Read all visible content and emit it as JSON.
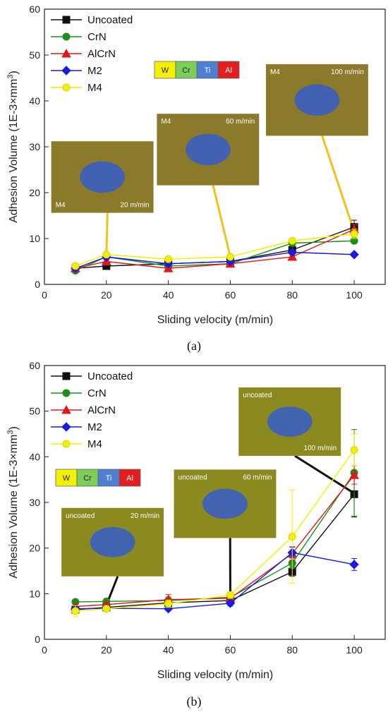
{
  "element_labels": [
    "W",
    "Cr",
    "Ti",
    "Al"
  ],
  "element_colors": [
    "#f5f000",
    "#7ccd5a",
    "#4f7fd0",
    "#e21e1e"
  ],
  "chart_data": [
    {
      "type": "line",
      "panel_label": "(a)",
      "xlabel": "Sliding velocity (m/min)",
      "ylabel": "Adhesion Volume (1E-3×mm",
      "ylabel_sup": "3",
      "ylabel_end": ")",
      "xlim": [
        0,
        110
      ],
      "ylim": [
        0,
        60
      ],
      "xticks": [
        0,
        20,
        40,
        60,
        80,
        100
      ],
      "yticks": [
        0,
        10,
        20,
        30,
        40,
        50,
        60
      ],
      "x": [
        10,
        20,
        40,
        60,
        80,
        100
      ],
      "series": [
        {
          "name": "Uncoated",
          "color": "#111111",
          "marker": "square",
          "values": [
            3.5,
            4.0,
            4.5,
            5.0,
            7.5,
            12.5
          ],
          "err": [
            0.3,
            0.3,
            0.3,
            0.3,
            0.5,
            1.5
          ]
        },
        {
          "name": "CrN",
          "color": "#1a8f1a",
          "marker": "circle",
          "values": [
            3.0,
            6.0,
            4.0,
            4.5,
            9.0,
            9.5
          ],
          "err": [
            0.3,
            0.4,
            0.3,
            0.3,
            0.5,
            0.5
          ]
        },
        {
          "name": "AlCrN",
          "color": "#e01818",
          "marker": "triangle",
          "values": [
            3.5,
            5.0,
            3.5,
            4.5,
            6.0,
            12.0
          ],
          "err": [
            0.3,
            0.3,
            0.3,
            0.3,
            0.4,
            1.0
          ]
        },
        {
          "name": "M2",
          "color": "#1a1ae0",
          "marker": "diamond",
          "values": [
            3.5,
            6.0,
            4.5,
            5.0,
            7.0,
            6.5
          ],
          "err": [
            0.3,
            0.4,
            0.3,
            0.3,
            0.4,
            0.4
          ]
        },
        {
          "name": "M4",
          "color": "#f0f000",
          "marker": "circle",
          "values": [
            4.0,
            6.5,
            5.5,
            6.0,
            9.5,
            11.0
          ],
          "err": [
            0.3,
            0.4,
            0.3,
            0.3,
            0.5,
            1.0
          ]
        }
      ],
      "insets": [
        {
          "label_left": "M4",
          "label_right": "20 m/min",
          "target": [
            20,
            6.5
          ]
        },
        {
          "label_left": "M4",
          "label_right": "60 m/min",
          "target": [
            60,
            6.0
          ]
        },
        {
          "label_left": "M4",
          "label_right": "100 m/min",
          "target": [
            100,
            11.5
          ]
        }
      ]
    },
    {
      "type": "line",
      "panel_label": "(b)",
      "xlabel": "Sliding velocity (m/min)",
      "ylabel": "Adhesion Volume (1E-3×mm",
      "ylabel_sup": "3",
      "ylabel_end": ")",
      "xlim": [
        0,
        110
      ],
      "ylim": [
        0,
        60
      ],
      "xticks": [
        0,
        20,
        40,
        60,
        80,
        100
      ],
      "yticks": [
        0,
        10,
        20,
        30,
        40,
        50,
        60
      ],
      "x": [
        10,
        20,
        40,
        60,
        80,
        100
      ],
      "series": [
        {
          "name": "Uncoated",
          "color": "#111111",
          "marker": "square",
          "values": [
            6.5,
            7.0,
            8.0,
            8.5,
            14.8,
            31.8
          ],
          "err": [
            0.5,
            0.5,
            0.8,
            0.6,
            1.0,
            5.0
          ]
        },
        {
          "name": "CrN",
          "color": "#1a8f1a",
          "marker": "circle",
          "values": [
            8.2,
            8.3,
            8.5,
            9.2,
            16.7,
            36.5
          ],
          "err": [
            0.4,
            0.5,
            0.8,
            0.6,
            1.2,
            9.5
          ]
        },
        {
          "name": "AlCrN",
          "color": "#e01818",
          "marker": "triangle",
          "values": [
            7.2,
            7.6,
            8.7,
            9.0,
            18.8,
            36.0
          ],
          "err": [
            0.4,
            0.5,
            1.1,
            0.8,
            1.5,
            2.0
          ]
        },
        {
          "name": "M2",
          "color": "#1a1ae0",
          "marker": "diamond",
          "values": [
            6.7,
            6.8,
            6.7,
            7.9,
            19.0,
            16.4
          ],
          "err": [
            0.5,
            0.5,
            0.4,
            0.6,
            1.2,
            1.3
          ]
        },
        {
          "name": "M4",
          "color": "#f0f000",
          "marker": "circle",
          "values": [
            6.2,
            6.7,
            7.8,
            9.7,
            22.5,
            41.5
          ],
          "err": [
            1.2,
            0.6,
            0.8,
            0.7,
            10.2,
            3.5
          ]
        }
      ],
      "insets": [
        {
          "label_left": "uncoated",
          "label_right": "20 m/min",
          "target": [
            20,
            7.5
          ]
        },
        {
          "label_left": "uncoated",
          "label_right": "60 m/min",
          "target": [
            60,
            9.0
          ]
        },
        {
          "label_left": "uncoated",
          "label_right": "100 m/min",
          "target": [
            100,
            32.0
          ]
        }
      ]
    }
  ]
}
